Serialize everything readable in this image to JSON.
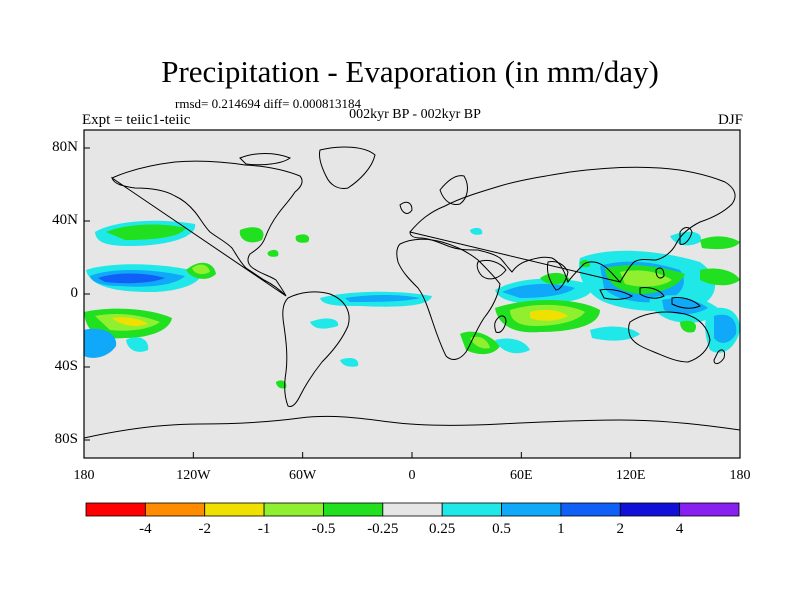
{
  "title": "Precipitation - Evaporation (in mm/day)",
  "subtitle": "rmsd= 0.214694 diff= 0.000813184",
  "period": "002kyr BP - 002kyr BP",
  "expt": "Expt = teiic1-teiic",
  "season": "DJF",
  "y_ticks": [
    "80N",
    "40N",
    "0",
    "40S",
    "80S"
  ],
  "x_ticks": [
    "180",
    "120W",
    "60W",
    "0",
    "60E",
    "120E",
    "180"
  ],
  "colorbar": {
    "colors": [
      "#ff0000",
      "#ff8c00",
      "#f0e000",
      "#90f030",
      "#20e020",
      "#e6e6e6",
      "#20e8e8",
      "#10a8f8",
      "#1060f8",
      "#1010d8",
      "#8820f0"
    ],
    "labels": [
      "-4",
      "-2",
      "-1",
      "-0.5",
      "-0.25",
      "0.25",
      "0.5",
      "1",
      "2",
      "4"
    ]
  }
}
